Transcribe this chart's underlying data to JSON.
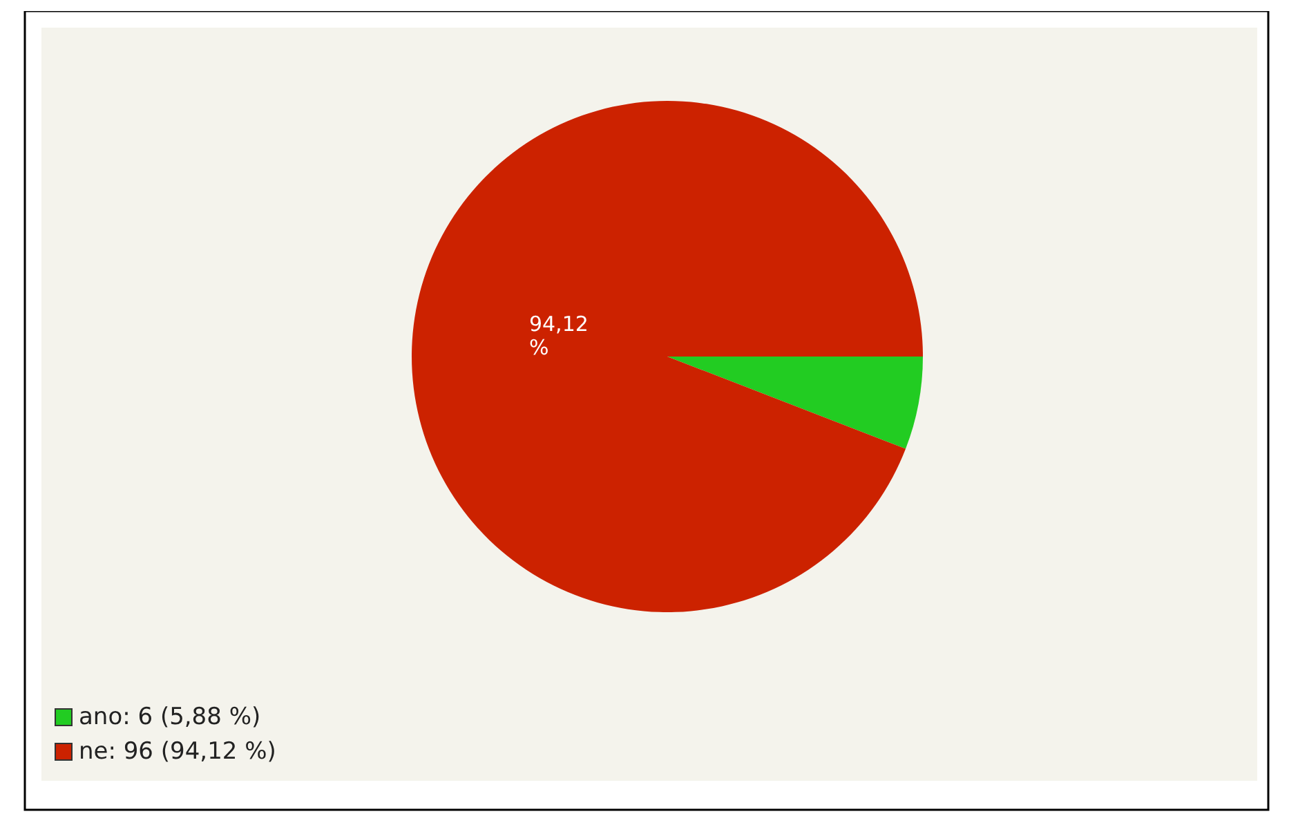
{
  "chart_data": {
    "type": "pie",
    "categories": [
      "ano: 6 (5,88 %)",
      "ne: 96 (94,12 %)"
    ],
    "values": [
      5.88,
      94.12
    ],
    "colors": [
      "#22cc22",
      "#cc2200"
    ],
    "value_labels": [
      null,
      "94,12 %"
    ],
    "legend": "bottom left"
  }
}
